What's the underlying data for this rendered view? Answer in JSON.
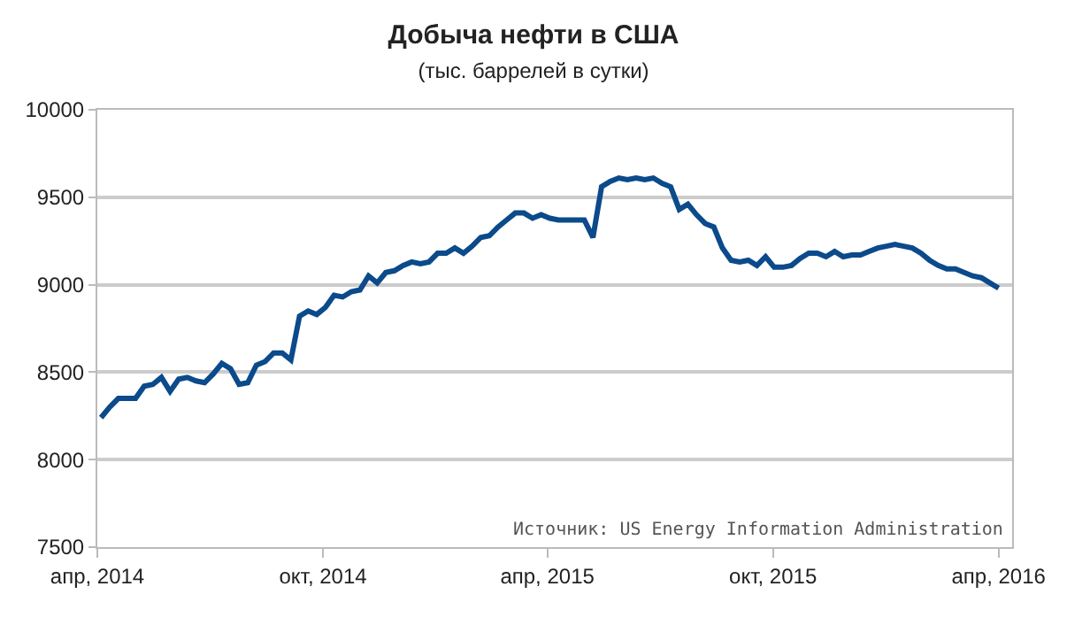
{
  "chart_data": {
    "type": "line",
    "title": "Добыча нефти в США",
    "subtitle": "(тыс. баррелей в сутки)",
    "annotations": [
      "Источник: US Energy Information Administration"
    ],
    "x": [
      "2014-04-04",
      "2014-04-11",
      "2014-04-18",
      "2014-04-25",
      "2014-05-02",
      "2014-05-09",
      "2014-05-16",
      "2014-05-23",
      "2014-05-30",
      "2014-06-06",
      "2014-06-13",
      "2014-06-20",
      "2014-06-27",
      "2014-07-04",
      "2014-07-11",
      "2014-07-18",
      "2014-07-25",
      "2014-08-01",
      "2014-08-08",
      "2014-08-15",
      "2014-08-22",
      "2014-08-29",
      "2014-09-05",
      "2014-09-12",
      "2014-09-19",
      "2014-09-26",
      "2014-10-03",
      "2014-10-10",
      "2014-10-17",
      "2014-10-24",
      "2014-10-31",
      "2014-11-07",
      "2014-11-14",
      "2014-11-21",
      "2014-11-28",
      "2014-12-05",
      "2014-12-12",
      "2014-12-19",
      "2014-12-26",
      "2015-01-02",
      "2015-01-09",
      "2015-01-16",
      "2015-01-23",
      "2015-01-30",
      "2015-02-06",
      "2015-02-13",
      "2015-02-20",
      "2015-02-27",
      "2015-03-06",
      "2015-03-13",
      "2015-03-20",
      "2015-03-27",
      "2015-04-03",
      "2015-04-10",
      "2015-04-17",
      "2015-04-24",
      "2015-05-01",
      "2015-05-08",
      "2015-05-15",
      "2015-05-22",
      "2015-05-29",
      "2015-06-05",
      "2015-06-12",
      "2015-06-19",
      "2015-06-26",
      "2015-07-03",
      "2015-07-10",
      "2015-07-17",
      "2015-07-24",
      "2015-07-31",
      "2015-08-07",
      "2015-08-14",
      "2015-08-21",
      "2015-08-28",
      "2015-09-04",
      "2015-09-11",
      "2015-09-18",
      "2015-09-25",
      "2015-10-02",
      "2015-10-09",
      "2015-10-16",
      "2015-10-23",
      "2015-10-30",
      "2015-11-06",
      "2015-11-13",
      "2015-11-20",
      "2015-11-27",
      "2015-12-04",
      "2015-12-11",
      "2015-12-18",
      "2015-12-25",
      "2016-01-01",
      "2016-01-08",
      "2016-01-15",
      "2016-01-22",
      "2016-01-29",
      "2016-02-05",
      "2016-02-12",
      "2016-02-19",
      "2016-02-26",
      "2016-03-04",
      "2016-03-11",
      "2016-03-18",
      "2016-03-25",
      "2016-04-01"
    ],
    "series": [
      {
        "color": "#0b4a8b",
        "values": [
          8240,
          8300,
          8350,
          8350,
          8350,
          8420,
          8430,
          8470,
          8390,
          8460,
          8470,
          8450,
          8440,
          8490,
          8550,
          8520,
          8430,
          8440,
          8540,
          8560,
          8610,
          8610,
          8570,
          8820,
          8850,
          8830,
          8870,
          8940,
          8930,
          8960,
          8970,
          9050,
          9010,
          9070,
          9080,
          9110,
          9130,
          9120,
          9130,
          9180,
          9180,
          9210,
          9180,
          9220,
          9270,
          9280,
          9330,
          9370,
          9410,
          9410,
          9380,
          9400,
          9380,
          9370,
          9370,
          9370,
          9370,
          9270,
          9560,
          9590,
          9610,
          9600,
          9610,
          9600,
          9610,
          9580,
          9560,
          9430,
          9460,
          9400,
          9350,
          9330,
          9210,
          9140,
          9130,
          9140,
          9110,
          9160,
          9100,
          9100,
          9110,
          9150,
          9180,
          9180,
          9160,
          9190,
          9160,
          9170,
          9170,
          9190,
          9210,
          9220,
          9230,
          9220,
          9210,
          9180,
          9140,
          9110,
          9090,
          9090,
          9070,
          9050,
          9040,
          9010,
          8980
        ]
      }
    ],
    "xlim": [
      "2014-04-01",
      "2016-04-12"
    ],
    "xticks": [
      {
        "value": "2014-04-01",
        "label": "апр, 2014"
      },
      {
        "value": "2014-10-01",
        "label": "окт, 2014"
      },
      {
        "value": "2015-04-01",
        "label": "апр, 2015"
      },
      {
        "value": "2015-10-01",
        "label": "окт, 2015"
      },
      {
        "value": "2016-04-01",
        "label": "апр, 2016"
      }
    ],
    "ylim": [
      7500,
      10000
    ],
    "yticks": [
      7500,
      8000,
      8500,
      9000,
      9500,
      10000
    ],
    "grid": "y"
  }
}
